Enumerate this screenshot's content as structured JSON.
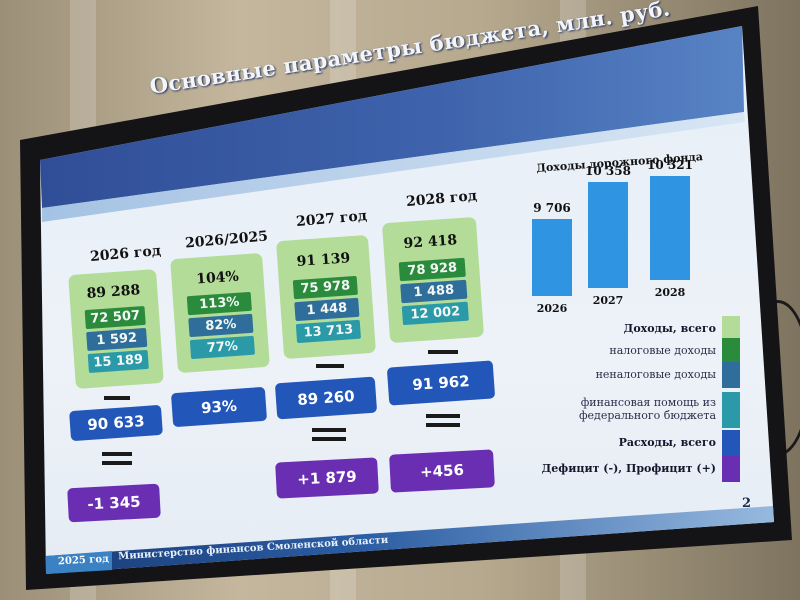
{
  "slide": {
    "title": "Основные параметры бюджета, млн. руб.",
    "page_number": "2",
    "footer_year": "2025 год",
    "footer_org": "Министерство финансов Смоленской области"
  },
  "colors": {
    "total_income": "#b3dc98",
    "tax_income": "#2a8b3d",
    "nontax_income": "#2f6e9a",
    "federal_aid": "#2b9aa8",
    "expenses": "#2256b8",
    "balance": "#6a2eb3",
    "road_fund": "#2f95e3"
  },
  "chart_data": [
    {
      "type": "table",
      "columns": [
        {
          "label": "2026 год",
          "income_total": "89 288",
          "tax": "72 507",
          "nontax": "1 592",
          "federal": "15 189",
          "expenses": "90 633",
          "balance": "-1 345"
        },
        {
          "label": "2026/2025",
          "income_total": "104%",
          "tax": "113%",
          "nontax": "82%",
          "federal": "77%",
          "expenses": "93%",
          "balance": ""
        },
        {
          "label": "2027 год",
          "income_total": "91 139",
          "tax": "75 978",
          "nontax": "1 448",
          "federal": "13 713",
          "expenses": "89 260",
          "balance": "+1 879"
        },
        {
          "label": "2028 год",
          "income_total": "92 418",
          "tax": "78 928",
          "nontax": "1 488",
          "federal": "12 002",
          "expenses": "91 962",
          "balance": "+456"
        }
      ]
    },
    {
      "type": "bar",
      "title": "Доходы дорожного фонда",
      "categories": [
        "2026",
        "2027",
        "2028"
      ],
      "values": [
        9706,
        10358,
        10321
      ],
      "value_labels": [
        "9 706",
        "10 358",
        "10 321"
      ]
    }
  ],
  "legend": [
    {
      "label": "Доходы, всего",
      "bold": true,
      "color": "#b3dc98"
    },
    {
      "label": "налоговые доходы",
      "bold": false,
      "color": "#2a8b3d"
    },
    {
      "label": "неналоговые доходы",
      "bold": false,
      "color": "#2f6e9a"
    },
    {
      "label": "финансовая помощь из",
      "label2": "федерального бюджета",
      "bold": false,
      "color": "#2b9aa8"
    },
    {
      "label": "Расходы, всего",
      "bold": true,
      "color": "#2256b8"
    },
    {
      "label": "Дефицит (-), Профицит (+)",
      "bold": true,
      "color": "#6a2eb3"
    }
  ]
}
